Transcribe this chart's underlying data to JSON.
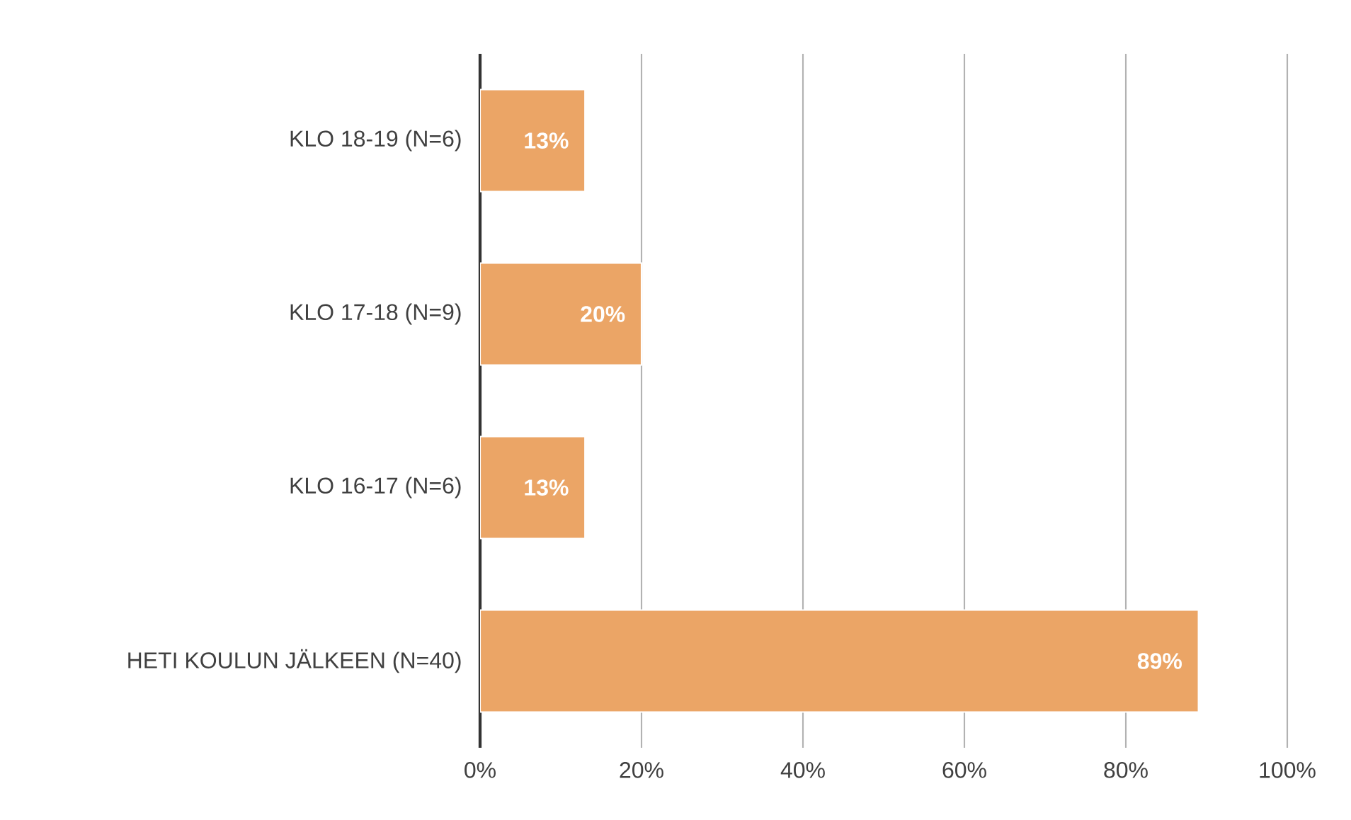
{
  "chart_data": {
    "type": "bar",
    "orientation": "horizontal",
    "categories": [
      "KLO 18-19 (N=6)",
      "KLO 17-18 (N=9)",
      "KLO 16-17 (N=6)",
      "HETI KOULUN JÄLKEEN (N=40)"
    ],
    "values": [
      13,
      20,
      13,
      89
    ],
    "value_labels": [
      "13%",
      "20%",
      "13%",
      "89%"
    ],
    "color": "#eba566",
    "xlim": [
      0,
      100
    ],
    "xticks": [
      {
        "value": 0,
        "label": "0%"
      },
      {
        "value": 20,
        "label": "20%"
      },
      {
        "value": 40,
        "label": "40%"
      },
      {
        "value": 60,
        "label": "60%"
      },
      {
        "value": 80,
        "label": "80%"
      },
      {
        "value": 100,
        "label": "100%"
      }
    ],
    "grid": "x"
  }
}
